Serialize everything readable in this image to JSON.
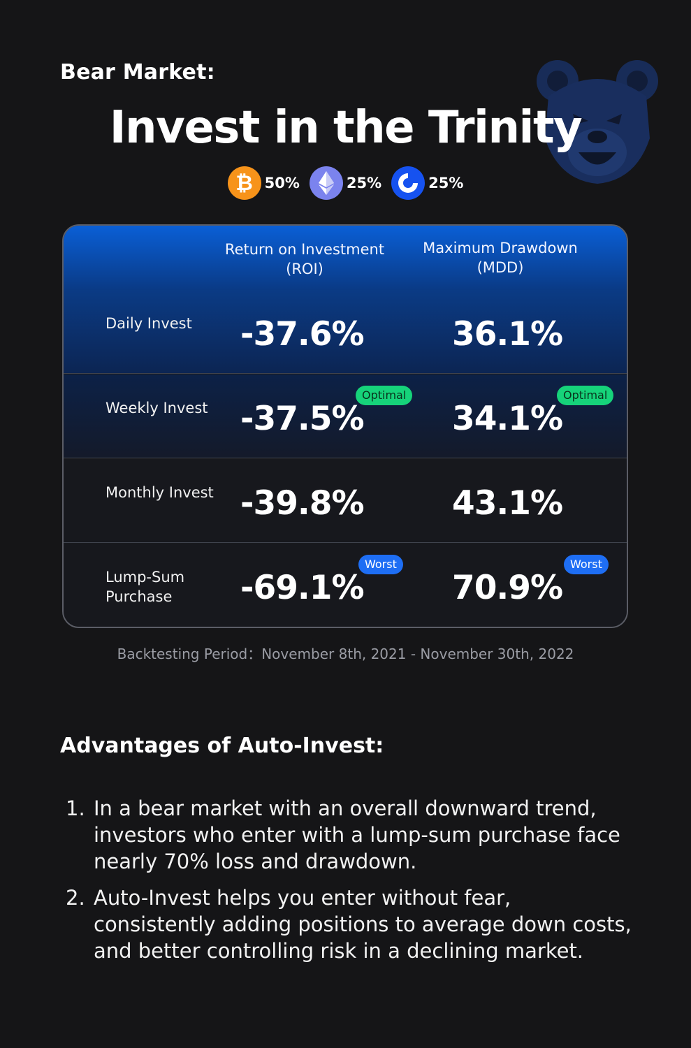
{
  "header": {
    "kicker": "Bear Market:",
    "title": "Invest in the Trinity"
  },
  "allocation": [
    {
      "icon": "bitcoin-icon",
      "glyph": "₿",
      "percent": "50%",
      "color": "#f7931a"
    },
    {
      "icon": "ethereum-icon",
      "percent": "25%",
      "color": "#7b83ee"
    },
    {
      "icon": "cronos-icon",
      "percent": "25%",
      "color": "#1652f0"
    }
  ],
  "table": {
    "col_roi": "Return on Investment (ROI)",
    "col_mdd": "Maximum Drawdown (MDD)",
    "rows": [
      {
        "label": "Daily Invest",
        "roi": "-37.6%",
        "mdd": "36.1%",
        "roi_badge": "",
        "mdd_badge": ""
      },
      {
        "label": "Weekly Invest",
        "roi": "-37.5%",
        "mdd": "34.1%",
        "roi_badge": "Optimal",
        "mdd_badge": "Optimal"
      },
      {
        "label": "Monthly Invest",
        "roi": "-39.8%",
        "mdd": "43.1%",
        "roi_badge": "",
        "mdd_badge": ""
      },
      {
        "label": "Lump-Sum Purchase",
        "roi": "-69.1%",
        "mdd": "70.9%",
        "roi_badge": "Worst",
        "mdd_badge": "Worst"
      }
    ]
  },
  "footnote": "Backtesting Period：November 8th, 2021 - November 30th, 2022",
  "advantages": {
    "title": "Advantages of Auto-Invest:",
    "items": [
      {
        "num": "1.",
        "text": "In a bear market with an overall downward trend, investors who enter with a lump-sum purchase face nearly 70% loss and drawdown."
      },
      {
        "num": "2.",
        "text": "Auto-Invest helps you enter without fear, consistently adding positions to average down costs, and better controlling risk in a declining market."
      }
    ]
  }
}
